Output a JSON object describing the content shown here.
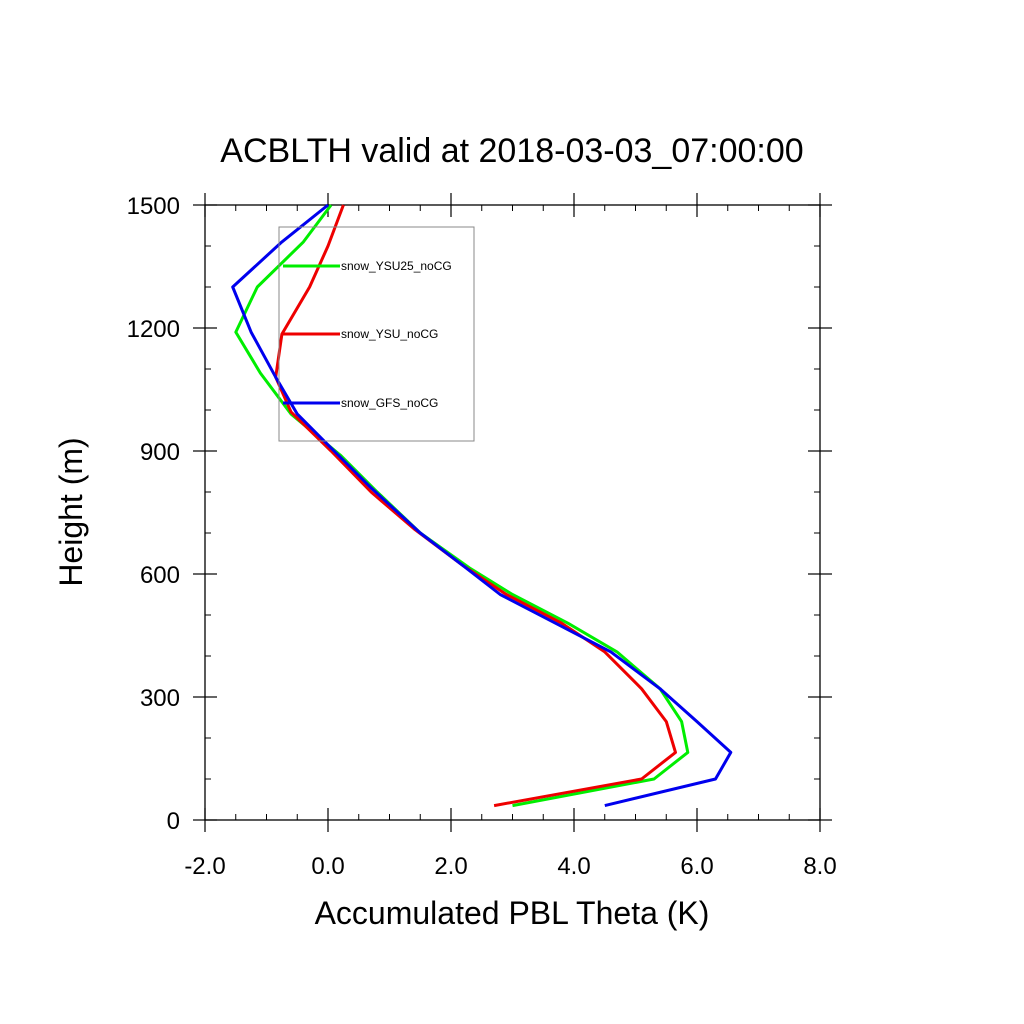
{
  "chart_data": {
    "type": "line",
    "title": "ACBLTH valid at 2018-03-03_07:00:00",
    "xlabel": "Accumulated PBL Theta (K)",
    "ylabel": "Height (m)",
    "xlim": [
      -2.0,
      8.0
    ],
    "ylim": [
      0,
      1500
    ],
    "x_ticks": [
      -2.0,
      0.0,
      2.0,
      4.0,
      6.0,
      8.0
    ],
    "x_tick_labels": [
      "-2.0",
      "0.0",
      "2.0",
      "4.0",
      "6.0",
      "8.0"
    ],
    "y_ticks": [
      0,
      300,
      600,
      900,
      1200,
      1500
    ],
    "y_tick_labels": [
      "0",
      "300",
      "600",
      "900",
      "1200",
      "1500"
    ],
    "grid": false,
    "legend_position": "top-left",
    "series": [
      {
        "name": "snow_YSU25_noCG",
        "color": "#00ee00",
        "points": [
          [
            3.0,
            35
          ],
          [
            5.3,
            100
          ],
          [
            5.85,
            165
          ],
          [
            5.75,
            240
          ],
          [
            5.4,
            320
          ],
          [
            4.7,
            410
          ],
          [
            3.9,
            480
          ],
          [
            3.0,
            550
          ],
          [
            2.3,
            615
          ],
          [
            1.5,
            700
          ],
          [
            0.8,
            800
          ],
          [
            0.2,
            890
          ],
          [
            -0.6,
            990
          ],
          [
            -1.1,
            1090
          ],
          [
            -1.5,
            1190
          ],
          [
            -1.15,
            1300
          ],
          [
            -0.4,
            1410
          ],
          [
            0.05,
            1500
          ]
        ]
      },
      {
        "name": "snow_YSU_noCG",
        "color": "#ee0000",
        "points": [
          [
            2.7,
            35
          ],
          [
            5.1,
            100
          ],
          [
            5.65,
            165
          ],
          [
            5.5,
            240
          ],
          [
            5.1,
            320
          ],
          [
            4.5,
            410
          ],
          [
            3.8,
            480
          ],
          [
            2.9,
            550
          ],
          [
            2.2,
            620
          ],
          [
            1.4,
            710
          ],
          [
            0.7,
            800
          ],
          [
            0.05,
            900
          ],
          [
            -0.6,
            995
          ],
          [
            -0.85,
            1080
          ],
          [
            -0.75,
            1185
          ],
          [
            -0.3,
            1300
          ],
          [
            0.0,
            1400
          ],
          [
            0.25,
            1500
          ]
        ]
      },
      {
        "name": "snow_GFS_noCG",
        "color": "#0000ee",
        "points": [
          [
            4.5,
            35
          ],
          [
            6.3,
            100
          ],
          [
            6.55,
            165
          ],
          [
            6.0,
            240
          ],
          [
            5.4,
            320
          ],
          [
            4.6,
            410
          ],
          [
            3.7,
            480
          ],
          [
            2.8,
            550
          ],
          [
            2.2,
            620
          ],
          [
            1.5,
            700
          ],
          [
            0.7,
            810
          ],
          [
            0.1,
            900
          ],
          [
            -0.5,
            990
          ],
          [
            -0.85,
            1080
          ],
          [
            -1.25,
            1190
          ],
          [
            -1.55,
            1300
          ],
          [
            -0.75,
            1410
          ],
          [
            0.0,
            1500
          ]
        ]
      }
    ]
  }
}
